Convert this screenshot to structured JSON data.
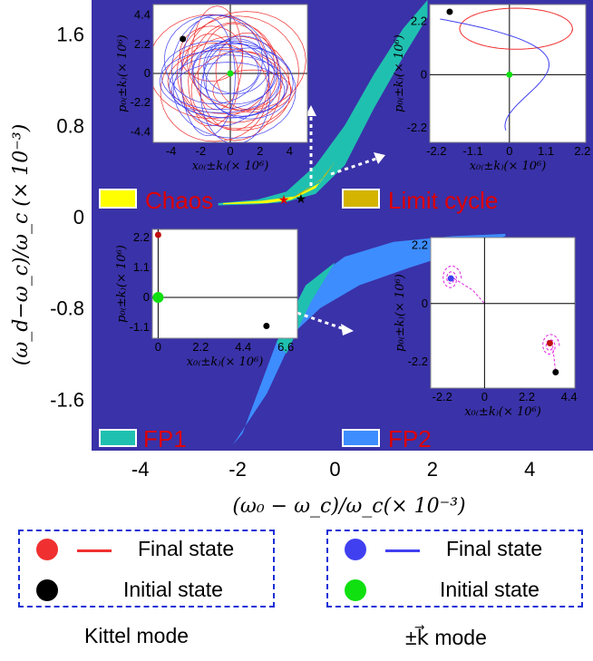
{
  "chart_data": {
    "type": "area",
    "xlabel": "(ω₀ − ω_c)/ω_c(× 10⁻³)",
    "ylabel": "(ω_d−ω_c)/ω_c (× 10⁻³)",
    "xlim": [
      -5,
      5.3
    ],
    "ylim": [
      -2.05,
      1.9
    ],
    "xticks": [
      "-4",
      "-2",
      "0",
      "2",
      "4"
    ],
    "xtick_values": [
      -4,
      -2,
      0,
      2,
      4
    ],
    "yticks": [
      "1.6",
      "0.8",
      "0",
      "-0.8",
      "-1.6"
    ],
    "ytick_values": [
      1.6,
      0.8,
      0,
      -0.8,
      -1.6
    ],
    "background_color": "#3a32a8",
    "regions": [
      {
        "name": "Chaos",
        "color": "#ffff00"
      },
      {
        "name": "Limit cycle",
        "color": "#d4b400"
      },
      {
        "name": "FP1",
        "color": "#20c0b0"
      },
      {
        "name": "FP2",
        "color": "#3d8dff"
      }
    ],
    "upper_band": {
      "upper_edge": [
        [
          -2.4,
          0.12
        ],
        [
          -1.6,
          0.15
        ],
        [
          -1.0,
          0.22
        ],
        [
          -0.4,
          0.45
        ],
        [
          0.2,
          0.8
        ],
        [
          0.8,
          1.25
        ],
        [
          1.4,
          1.65
        ],
        [
          1.9,
          1.9
        ]
      ],
      "lower_edge": [
        [
          -2.4,
          0.1
        ],
        [
          -1.6,
          0.11
        ],
        [
          -1.0,
          0.13
        ],
        [
          -0.4,
          0.2
        ],
        [
          0.2,
          0.45
        ],
        [
          0.8,
          0.95
        ],
        [
          1.4,
          1.4
        ],
        [
          1.9,
          1.75
        ]
      ]
    },
    "lower_band": {
      "upper_edge": [
        [
          -1.9,
          -1.9
        ],
        [
          -1.2,
          -1.1
        ],
        [
          -0.6,
          -0.6
        ],
        [
          0.2,
          -0.35
        ],
        [
          1.2,
          -0.22
        ],
        [
          2.4,
          -0.17
        ],
        [
          3.5,
          -0.15
        ]
      ],
      "lower_edge": [
        [
          -2.1,
          -2.0
        ],
        [
          -1.4,
          -1.55
        ],
        [
          -0.8,
          -1.0
        ],
        [
          -0.3,
          -0.8
        ],
        [
          0.5,
          -0.6
        ],
        [
          1.5,
          -0.45
        ],
        [
          2.6,
          -0.3
        ],
        [
          3.5,
          -0.17
        ]
      ]
    },
    "markers": [
      {
        "x": -1.05,
        "y": 0.15,
        "color": "#e00000",
        "symbol": "star"
      },
      {
        "x": -0.7,
        "y": 0.16,
        "color": "#000000",
        "symbol": "star"
      }
    ],
    "insets": [
      {
        "name": "chaos-inset",
        "xlabel": "x₀₍±k₎(× 10⁶)",
        "ylabel": "p₀₍±k₎(× 10⁶)",
        "xticks": [
          "-4",
          "-2",
          "0",
          "2",
          "4"
        ],
        "yticks": [
          "4.4",
          "2.2",
          "0",
          "-2.2",
          "-4.4"
        ],
        "xlim": [
          -5.2,
          5.2
        ],
        "ylim": [
          -5.2,
          5.2
        ],
        "initial_kittel": [
          -3.2,
          2.6
        ],
        "initial_k": [
          0,
          0
        ]
      },
      {
        "name": "limit-cycle-inset",
        "xlabel": "x₀₍±k₎(× 10⁶)",
        "ylabel": "p₀₍±k₎(× 10⁶)",
        "xticks": [
          "-2.2",
          "-1.1",
          "0",
          "1.1",
          "2.2"
        ],
        "yticks": [
          "2.2",
          "0",
          "-2.2"
        ],
        "xlim": [
          -2.4,
          2.3
        ],
        "ylim": [
          -2.8,
          2.9
        ],
        "initial_kittel": [
          -1.8,
          2.6
        ],
        "initial_k": [
          0,
          0
        ]
      },
      {
        "name": "fp1-inset",
        "xlabel": "x₀₍±k₎(× 10⁶)",
        "ylabel": "p₀₍±k₎(× 10⁶)",
        "xticks": [
          "0",
          "2.2",
          "4.4",
          "6.6"
        ],
        "yticks": [
          "2.2",
          "1.1",
          "0",
          "-1.1"
        ],
        "xlim": [
          -0.3,
          7.2
        ],
        "ylim": [
          -1.5,
          2.5
        ],
        "initial_kittel": [
          5.6,
          -1.05
        ],
        "final_kittel": [
          0,
          2.3
        ],
        "final_k": [
          0,
          0
        ]
      },
      {
        "name": "fp2-inset",
        "xlabel": "x₀₍±k₎(× 10⁶)",
        "ylabel": "p₀₍±k₎(× 10⁶)",
        "xticks": [
          "-2.2",
          "0",
          "2.2",
          "4.4"
        ],
        "yticks": [
          "2.2",
          "0",
          "-2.2"
        ],
        "xlim": [
          -2.8,
          4.7
        ],
        "ylim": [
          -3.2,
          2.5
        ],
        "initial_kittel": [
          3.7,
          -2.6
        ],
        "final_kittel": [
          3.4,
          -1.5
        ],
        "final_k": [
          -1.75,
          0.95
        ]
      }
    ]
  },
  "labels": {
    "chaos": "Chaos",
    "limit_cycle": "Limit cycle",
    "fp1": "FP1",
    "fp2": "FP2"
  },
  "legend": {
    "kittel": {
      "final_state": "Final state",
      "initial_state": "Initial state",
      "title": "Kittel mode",
      "final_color": "#f03030",
      "initial_color": "#000000"
    },
    "k_mode": {
      "final_state": "Final state",
      "initial_state": "Initial state",
      "title": "±k⃗ mode",
      "final_color": "#4040f0",
      "initial_color": "#10e010"
    }
  }
}
